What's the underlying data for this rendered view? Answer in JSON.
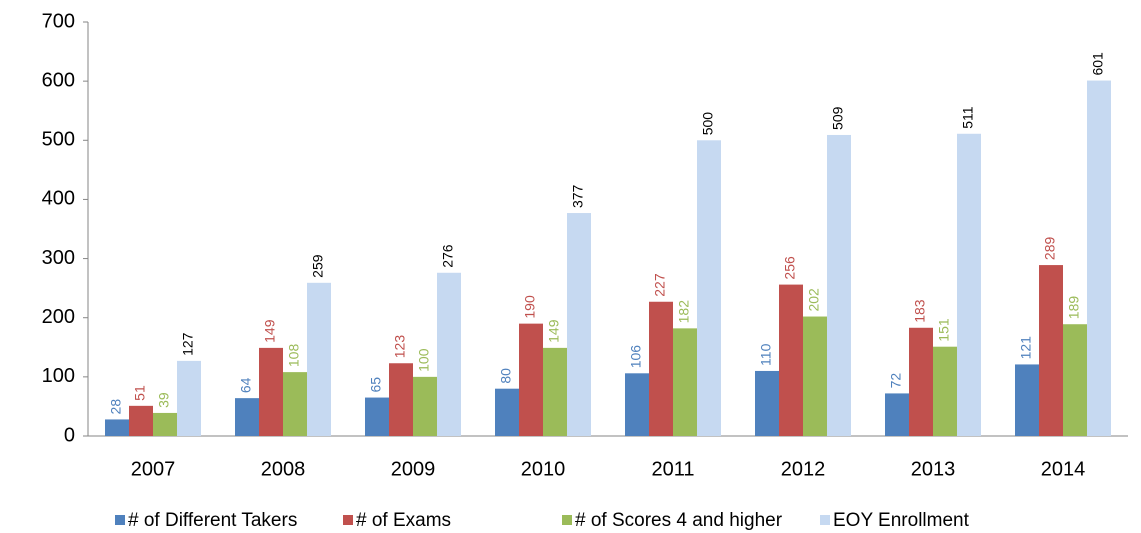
{
  "chart_data": {
    "type": "bar",
    "categories": [
      "2007",
      "2008",
      "2009",
      "2010",
      "2011",
      "2012",
      "2013",
      "2014"
    ],
    "series": [
      {
        "name": "# of Different Takers",
        "color": "#4f81bd",
        "label_color": "#4f81bd",
        "values": [
          28,
          64,
          65,
          80,
          106,
          110,
          72,
          121
        ]
      },
      {
        "name": "# of Exams",
        "color": "#c0504d",
        "label_color": "#c0504d",
        "values": [
          51,
          149,
          123,
          190,
          227,
          256,
          183,
          289
        ]
      },
      {
        "name": "# of Scores 4 and higher",
        "color": "#9bbb59",
        "label_color": "#9bbb59",
        "values": [
          39,
          108,
          100,
          149,
          182,
          202,
          151,
          189
        ]
      },
      {
        "name": "EOY Enrollment",
        "color": "#c6d9f1",
        "label_color": "#000000",
        "values": [
          127,
          259,
          276,
          377,
          500,
          509,
          511,
          601
        ]
      }
    ],
    "ylim": [
      0,
      700
    ],
    "yticks": [
      0,
      100,
      200,
      300,
      400,
      500,
      600,
      700
    ],
    "grid": false,
    "legend": "bottom"
  }
}
